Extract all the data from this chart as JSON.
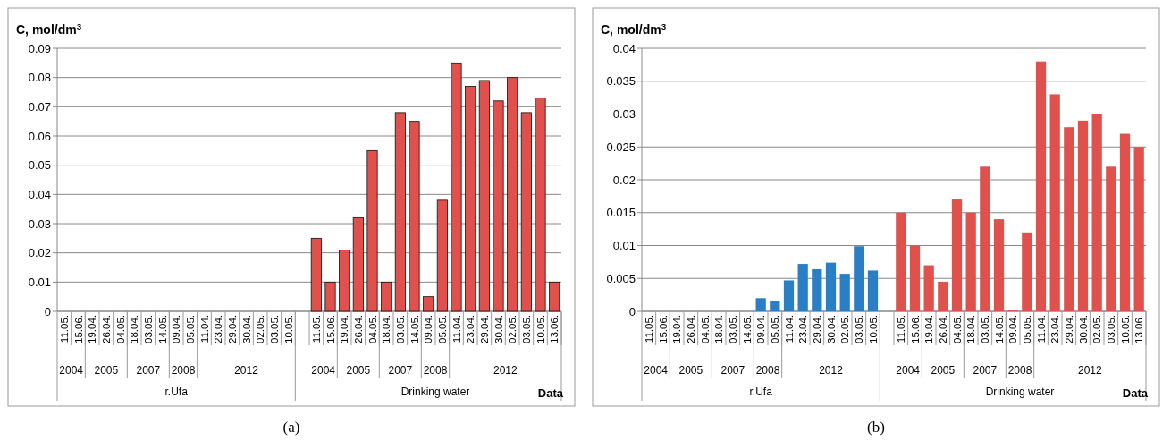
{
  "chart_data": [
    {
      "type": "bar",
      "title": "(a)",
      "ylabel": "C, mol/dm$^{3}$",
      "categories": [
        "11.05.",
        "15.06.",
        "19.04.",
        "26.04.",
        "04.05.",
        "18.04.",
        "03.05.",
        "14.05.",
        "09.04.",
        "05.05.",
        "11.04.",
        "23.04.",
        "29.04.",
        "30.04.",
        "02.05.",
        "03.05.",
        "10.05.",
        null,
        "11.05.",
        "15.06.",
        "19.04.",
        "26.04.",
        "04.05.",
        "18.04.",
        "03.05.",
        "14.05.",
        "09.04.",
        "05.05.",
        "11.04.",
        "23.04.",
        "29.04.",
        "30.04.",
        "02.05.",
        "03.05.",
        "10.05.",
        "13.06."
      ],
      "values": [
        null,
        null,
        null,
        null,
        null,
        null,
        null,
        null,
        null,
        null,
        null,
        null,
        null,
        null,
        null,
        null,
        null,
        null,
        0.025,
        0.01,
        0.021,
        0.032,
        0.055,
        0.01,
        0.068,
        0.065,
        0.005,
        0.038,
        0.085,
        0.077,
        0.079,
        0.072,
        0.08,
        0.068,
        0.073,
        0.01
      ],
      "color": "#e0504c",
      "ylim": [
        0,
        0.09
      ],
      "yticks": [
        0,
        0.01,
        0.02,
        0.03,
        0.04,
        0.05,
        0.06,
        0.07,
        0.08,
        0.09
      ],
      "grid": "y",
      "annotations": [
        "2004",
        "2005",
        "2007",
        "2008",
        "2012",
        "r.Ufa",
        "2004",
        "2005",
        "2007",
        "2008",
        "2012",
        "Drinking water",
        "Data"
      ]
    },
    {
      "type": "bar",
      "title": "(b)",
      "ylabel": "C, mol/dm$^{3}$",
      "categories": [
        "11.05.",
        "15.06.",
        "19.04.",
        "26.04.",
        "04.05.",
        "18.04.",
        "03.05.",
        "14.05.",
        "09.04.",
        "05.05.",
        "11.04.",
        "23.04.",
        "29.04.",
        "30.04.",
        "02.05.",
        "03.05.",
        "10.05.",
        null,
        "11.05.",
        "15.06.",
        "19.04.",
        "26.04.",
        "04.05.",
        "18.04.",
        "03.05.",
        "14.05.",
        "09.04.",
        "05.05.",
        "11.04.",
        "23.04.",
        "29.04.",
        "30.04.",
        "02.05.",
        "03.05.",
        "10.05.",
        "13.06."
      ],
      "values": [
        null,
        null,
        null,
        null,
        null,
        null,
        null,
        null,
        0.002,
        0.0015,
        0.0047,
        0.0072,
        0.0064,
        0.0074,
        0.0057,
        0.0099,
        0.0062,
        null,
        0.015,
        0.01,
        0.007,
        0.0045,
        0.017,
        0.015,
        0.022,
        0.014,
        0.0002,
        0.012,
        0.038,
        0.033,
        0.028,
        0.029,
        0.03,
        0.022,
        0.027,
        0.025
      ],
      "colors": [
        null,
        null,
        null,
        null,
        null,
        null,
        null,
        null,
        "#2a7fc4",
        "#2a7fc4",
        "#2a7fc4",
        "#2a7fc4",
        "#2a7fc4",
        "#2a7fc4",
        "#2a7fc4",
        "#2a7fc4",
        "#2a7fc4",
        null,
        "#e0504c",
        "#e0504c",
        "#e0504c",
        "#e0504c",
        "#e0504c",
        "#e0504c",
        "#e0504c",
        "#e0504c",
        "#e0504c",
        "#e0504c",
        "#e0504c",
        "#e0504c",
        "#e0504c",
        "#e0504c",
        "#e0504c",
        "#e0504c",
        "#e0504c",
        "#e0504c"
      ],
      "ylim": [
        0,
        0.04
      ],
      "yticks": [
        0,
        0.005,
        0.01,
        0.015,
        0.02,
        0.025,
        0.03,
        0.035,
        0.04
      ],
      "grid": "y",
      "annotations": [
        "2004",
        "2005",
        "2007",
        "2008",
        "2012",
        "r.Ufa",
        "2004",
        "2005",
        "2007",
        "2008",
        "2012",
        "Drinking water",
        "Data"
      ]
    }
  ]
}
